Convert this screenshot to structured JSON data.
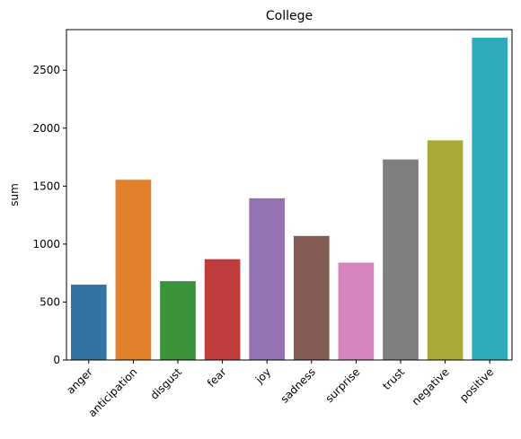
{
  "chart_data": {
    "type": "bar",
    "title": "College",
    "xlabel": "",
    "ylabel": "sum",
    "ylim": [
      0,
      2850
    ],
    "yticks": [
      0,
      500,
      1000,
      1500,
      2000,
      2500
    ],
    "grid": false,
    "categories": [
      "anger",
      "anticipation",
      "disgust",
      "fear",
      "joy",
      "sadness",
      "surprise",
      "trust",
      "negative",
      "positive"
    ],
    "values": [
      650,
      1555,
      680,
      870,
      1395,
      1070,
      840,
      1730,
      1895,
      2780
    ],
    "colors": [
      "#3274a1",
      "#e1812c",
      "#3a923a",
      "#c03d3e",
      "#9372b2",
      "#845b53",
      "#d684bd",
      "#7f7f7f",
      "#a9aa35",
      "#2eabb8"
    ]
  }
}
